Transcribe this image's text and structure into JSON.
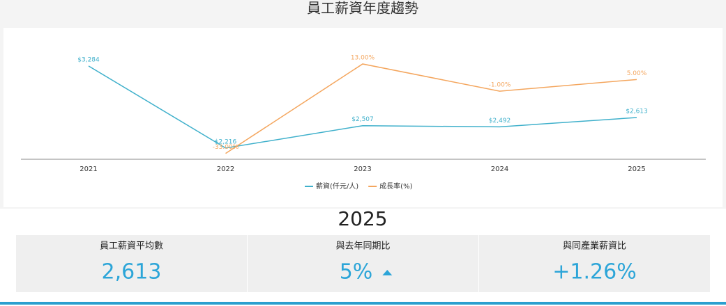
{
  "title": "員工薪資年度趨勢",
  "chart_data": {
    "type": "line",
    "categories": [
      "2021",
      "2022",
      "2023",
      "2024",
      "2025"
    ],
    "series": [
      {
        "name": "薪資(仟元/人)",
        "color": "#3fb0cb",
        "values": [
          3284,
          2216,
          2507,
          2492,
          2613
        ],
        "value_labels": [
          "$3,284",
          "$2,216",
          "$2,507",
          "$2,492",
          "$2,613"
        ]
      },
      {
        "name": "成長率(%)",
        "color": "#f4a65e",
        "axis": "y2",
        "values": [
          null,
          -33,
          13,
          -1,
          5
        ],
        "value_labels": [
          null,
          "-33.00%",
          "13.00%",
          "-1.00%",
          "5.00%"
        ]
      }
    ],
    "ylim": [
      2070,
      3690
    ],
    "y2lim": [
      -36,
      28
    ],
    "legend": "bottom"
  },
  "summary": {
    "year": "2025",
    "cards": [
      {
        "label": "員工薪資平均數",
        "value": "2,613"
      },
      {
        "label": "與去年同期比",
        "value": "5%"
      },
      {
        "label": "與同產業薪資比",
        "value": "+1.26%"
      }
    ]
  }
}
